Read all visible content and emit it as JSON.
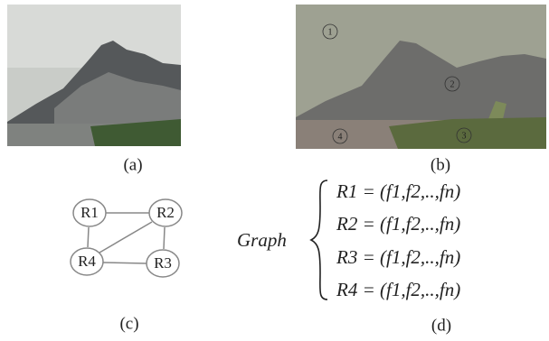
{
  "panels": {
    "a": {
      "caption": "(a)"
    },
    "b": {
      "caption": "(b)",
      "regions": [
        "1",
        "2",
        "3",
        "4"
      ]
    },
    "c": {
      "caption": "(c)",
      "nodes": [
        "R1",
        "R2",
        "R3",
        "R4"
      ]
    },
    "d": {
      "caption": "(d)",
      "label": "Graph",
      "equations": [
        "R1 = (f1,f2,..,fn)",
        "R2 = (f1,f2,..,fn)",
        "R3 = (f1,f2,..,fn)",
        "R4 = (f1,f2,..,fn)"
      ]
    }
  }
}
